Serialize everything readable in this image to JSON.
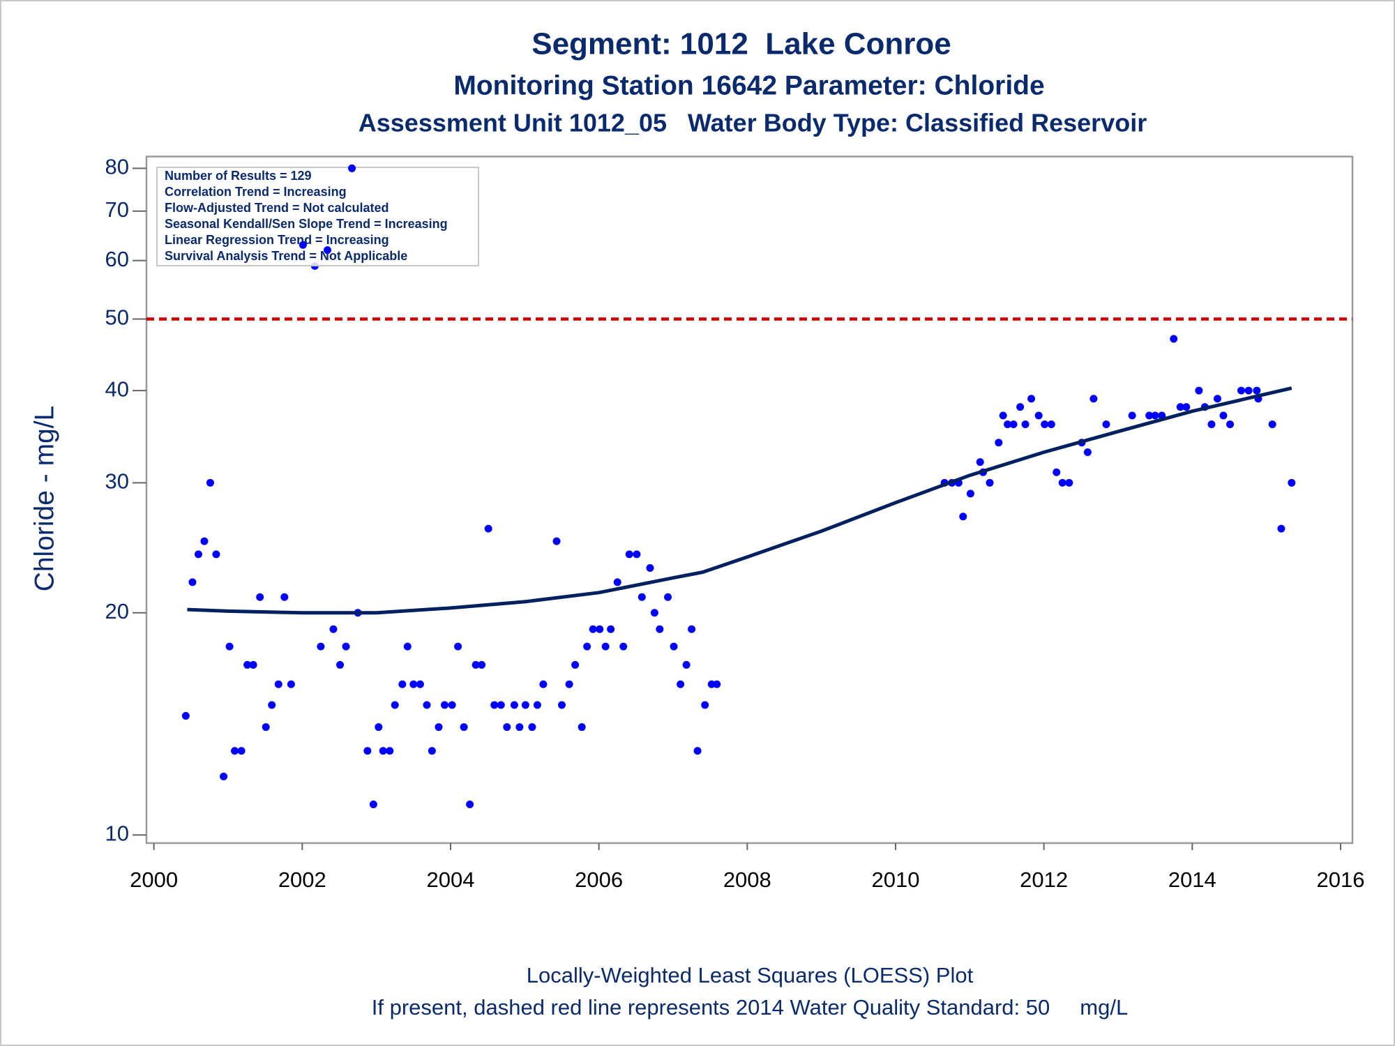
{
  "chart_data": {
    "type": "scatter",
    "title": "Segment: 1012  Lake Conroe",
    "subtitle": "Monitoring Station 16642 Parameter: Chloride",
    "subtitle2": "Assessment Unit 1012_05   Water Body Type: Classified Reservoir",
    "ylabel": "Chloride - mg/L",
    "log_y": true,
    "xlim": [
      1999.9,
      2016.16
    ],
    "xticks": [
      2000,
      2002,
      2004,
      2006,
      2008,
      2010,
      2012,
      2014,
      2016
    ],
    "ylim": [
      9.75,
      83
    ],
    "yticks": [
      10,
      20,
      30,
      40,
      50,
      60,
      70,
      80
    ],
    "series": [
      {
        "mode": "markers",
        "color": "#0000ff",
        "x": [
          2000.43,
          2000.52,
          2000.6,
          2000.68,
          2000.76,
          2000.84,
          2000.94,
          2001.02,
          2001.09,
          2001.18,
          2001.26,
          2001.34,
          2001.43,
          2001.51,
          2001.59,
          2001.68,
          2001.76,
          2001.85,
          2002.01,
          2002.17,
          2002.25,
          2002.34,
          2002.42,
          2002.51,
          2002.59,
          2002.67,
          2002.75,
          2002.88,
          2002.96,
          2003.03,
          2003.09,
          2003.18,
          2003.25,
          2003.35,
          2003.42,
          2003.5,
          2003.59,
          2003.68,
          2003.75,
          2003.84,
          2003.92,
          2004.02,
          2004.1,
          2004.18,
          2004.26,
          2004.34,
          2004.42,
          2004.51,
          2004.59,
          2004.68,
          2004.76,
          2004.86,
          2004.93,
          2005.01,
          2005.1,
          2005.17,
          2005.25,
          2005.43,
          2005.5,
          2005.6,
          2005.68,
          2005.77,
          2005.84,
          2005.92,
          2006.01,
          2006.09,
          2006.16,
          2006.25,
          2006.33,
          2006.41,
          2006.51,
          2006.58,
          2006.69,
          2006.75,
          2006.82,
          2006.93,
          2007.01,
          2007.1,
          2007.18,
          2007.25,
          2007.33,
          2007.43,
          2007.52,
          2007.59,
          2010.66,
          2010.76,
          2010.85,
          2010.91,
          2011.01,
          2011.14,
          2011.18,
          2011.27,
          2011.39,
          2011.45,
          2011.51,
          2011.59,
          2011.68,
          2011.75,
          2011.83,
          2011.93,
          2012.01,
          2012.1,
          2012.17,
          2012.25,
          2012.34,
          2012.51,
          2012.59,
          2012.67,
          2012.84,
          2013.19,
          2013.42,
          2013.5,
          2013.59,
          2013.75,
          2013.84,
          2013.92,
          2014.09,
          2014.17,
          2014.26,
          2014.34,
          2014.42,
          2014.51,
          2014.66,
          2014.76,
          2014.87,
          2014.89,
          2015.08,
          2015.2,
          2015.34
        ],
        "values": [
          14.5,
          22,
          24,
          25,
          30,
          24,
          12,
          18,
          13,
          13,
          17,
          17,
          21,
          14,
          15,
          16,
          21,
          16,
          63,
          59,
          18,
          62,
          19,
          17,
          18,
          80,
          20,
          13,
          11,
          14,
          13,
          13,
          15,
          16,
          18,
          16,
          16,
          15,
          13,
          14,
          15,
          15,
          18,
          14,
          11,
          17,
          17,
          26,
          15,
          15,
          14,
          15,
          14,
          15,
          14,
          15,
          16,
          25,
          15,
          16,
          17,
          14,
          18,
          19,
          19,
          18,
          19,
          22,
          18,
          24,
          24,
          21,
          23,
          20,
          19,
          21,
          18,
          16,
          17,
          19,
          13,
          15,
          16,
          16,
          30,
          30,
          30,
          27,
          29,
          32,
          31,
          30,
          34,
          37,
          36,
          36,
          38,
          36,
          39,
          37,
          36,
          36,
          31,
          30,
          30,
          34,
          33,
          39,
          36,
          37,
          37,
          37,
          37,
          47,
          38,
          38,
          40,
          38,
          36,
          39,
          37,
          36,
          40,
          40,
          40,
          39,
          36,
          26,
          30
        ]
      },
      {
        "mode": "line",
        "color": "#002060",
        "x": [
          2000.45,
          2001,
          2002,
          2003,
          2004,
          2005,
          2006,
          2007,
          2007.4,
          2008,
          2009,
          2010,
          2011,
          2012,
          2013,
          2014,
          2015.34
        ],
        "values": [
          20.2,
          20.1,
          20.0,
          20.0,
          20.3,
          20.7,
          21.3,
          22.3,
          22.7,
          23.8,
          25.8,
          28.2,
          30.7,
          33.0,
          35.2,
          37.5,
          40.3
        ]
      }
    ],
    "reference_lines": [
      {
        "value": 50,
        "color": "#cc0000",
        "style": "dashed"
      }
    ],
    "annotations": [
      "Number of Results = 129",
      "Correlation Trend = Increasing",
      "Flow-Adjusted Trend = Not calculated",
      "Seasonal Kendall/Sen Slope Trend = Increasing",
      "Linear Regression Trend = Increasing",
      "Survival Analysis Trend = Not Applicable"
    ],
    "footnotes": [
      "Locally-Weighted Least Squares (LOESS) Plot",
      "If present, dashed red line represents 2014 Water Quality Standard: 50     mg/L"
    ]
  }
}
